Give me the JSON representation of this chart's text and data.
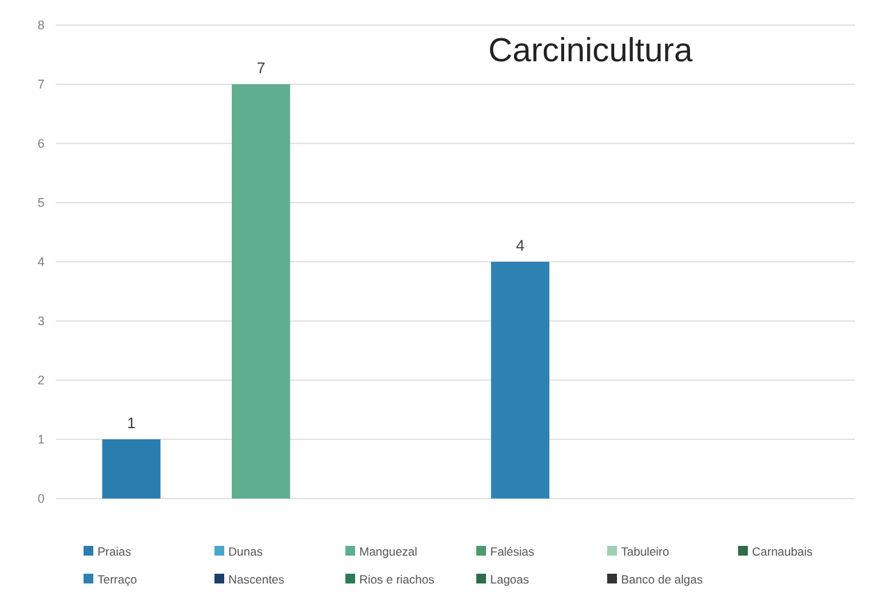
{
  "chart_data": {
    "type": "bar",
    "title": "Carcinicultura",
    "categories": [
      null
    ],
    "series": [
      {
        "name": "Praias",
        "color": "#2b7db0",
        "values": [
          1
        ],
        "value_labels": [
          "1"
        ]
      },
      {
        "name": "Dunas",
        "color": "#4aa6c9",
        "values": [
          0
        ],
        "value_labels": [
          null
        ]
      },
      {
        "name": "Manguezal",
        "color": "#5fae8f",
        "values": [
          7
        ],
        "value_labels": [
          "7"
        ]
      },
      {
        "name": "Falésias",
        "color": "#4e9a70",
        "values": [
          0
        ],
        "value_labels": [
          null
        ]
      },
      {
        "name": "Tabuleiro",
        "color": "#9fd0b5",
        "values": [
          0
        ],
        "value_labels": [
          null
        ]
      },
      {
        "name": "Carnaubais",
        "color": "#2f6b4a",
        "values": [
          0
        ],
        "value_labels": [
          null
        ]
      },
      {
        "name": "Terraço",
        "color": "#2e82b3",
        "values": [
          4
        ],
        "value_labels": [
          "4"
        ]
      },
      {
        "name": "Nascentes",
        "color": "#1f3f6a",
        "values": [
          0
        ],
        "value_labels": [
          null
        ]
      },
      {
        "name": "Rios e riachos",
        "color": "#2e7a55",
        "values": [
          0
        ],
        "value_labels": [
          null
        ]
      },
      {
        "name": "Lagoas",
        "color": "#2d6e4a",
        "values": [
          0
        ],
        "value_labels": [
          null
        ]
      },
      {
        "name": "Banco de algas",
        "color": "#333333",
        "values": [
          0
        ],
        "value_labels": [
          null
        ]
      }
    ],
    "ylim": [
      0,
      8
    ],
    "yticks": [
      0,
      1,
      2,
      3,
      4,
      5,
      6,
      7,
      8
    ],
    "grid": "y",
    "legend": "bottom"
  }
}
